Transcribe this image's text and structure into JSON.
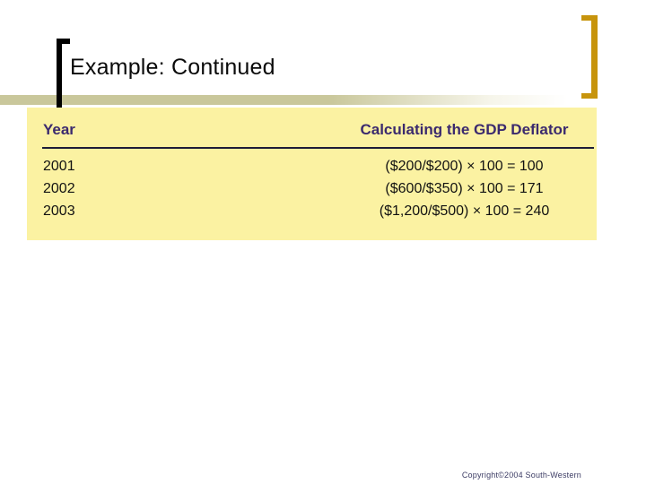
{
  "slide": {
    "title": "Example: Continued",
    "copyright": "Copyright©2004  South-Western"
  },
  "table": {
    "columns": [
      "Year",
      "Calculating the GDP Deflator"
    ],
    "rows": [
      {
        "year": "2001",
        "calc": "($200/$200) × 100 = 100"
      },
      {
        "year": "2002",
        "calc": "($600/$350) × 100 = 171"
      },
      {
        "year": "2003",
        "calc": "($1,200/$500) × 100 = 240"
      }
    ]
  },
  "colors": {
    "panel_background": "#fbf2a2",
    "header_text": "#3b2a6e",
    "underline_bar": "#c9c79b",
    "right_bracket_gold": "#c7940c",
    "left_bracket_black": "#000000",
    "table_rule": "#1d1d38",
    "copyright_text": "#3c3c64"
  }
}
